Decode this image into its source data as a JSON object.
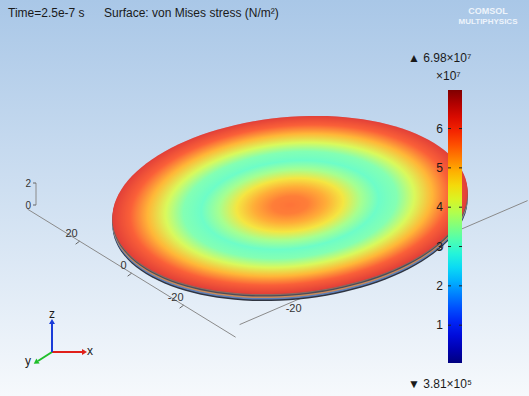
{
  "chart_data": {
    "type": "surface",
    "title": "Time=2.5e-7 s",
    "subtitle": "Surface: von Mises stress (N/m²)",
    "logo": [
      "COMSOL",
      "MULTIPHYSICS"
    ],
    "xlabel": "x",
    "ylabel": "y",
    "zlabel": "z",
    "xlim": [
      -40,
      40
    ],
    "xticks": [
      -20,
      0,
      20
    ],
    "ylim": [
      -40,
      40
    ],
    "yticks": [
      -20,
      0,
      20
    ],
    "zlim": [
      0,
      2
    ],
    "zticks": [
      0,
      2
    ],
    "radii": [
      0,
      4,
      8,
      12,
      16,
      20,
      24,
      28,
      32,
      36,
      40
    ],
    "values": [
      5.6,
      5.5,
      5.1,
      4.5,
      3.6,
      3.1,
      3.3,
      4.1,
      5.0,
      5.8,
      6.3
    ],
    "colorbar": {
      "range": [
        0.0381,
        6.98
      ],
      "ticks": [
        1,
        2,
        3,
        4,
        5,
        6
      ],
      "multiplier": "×10⁷",
      "max_label": "▲ 6.98×10⁷",
      "min_label": "▼ 3.81×10⁵"
    }
  }
}
